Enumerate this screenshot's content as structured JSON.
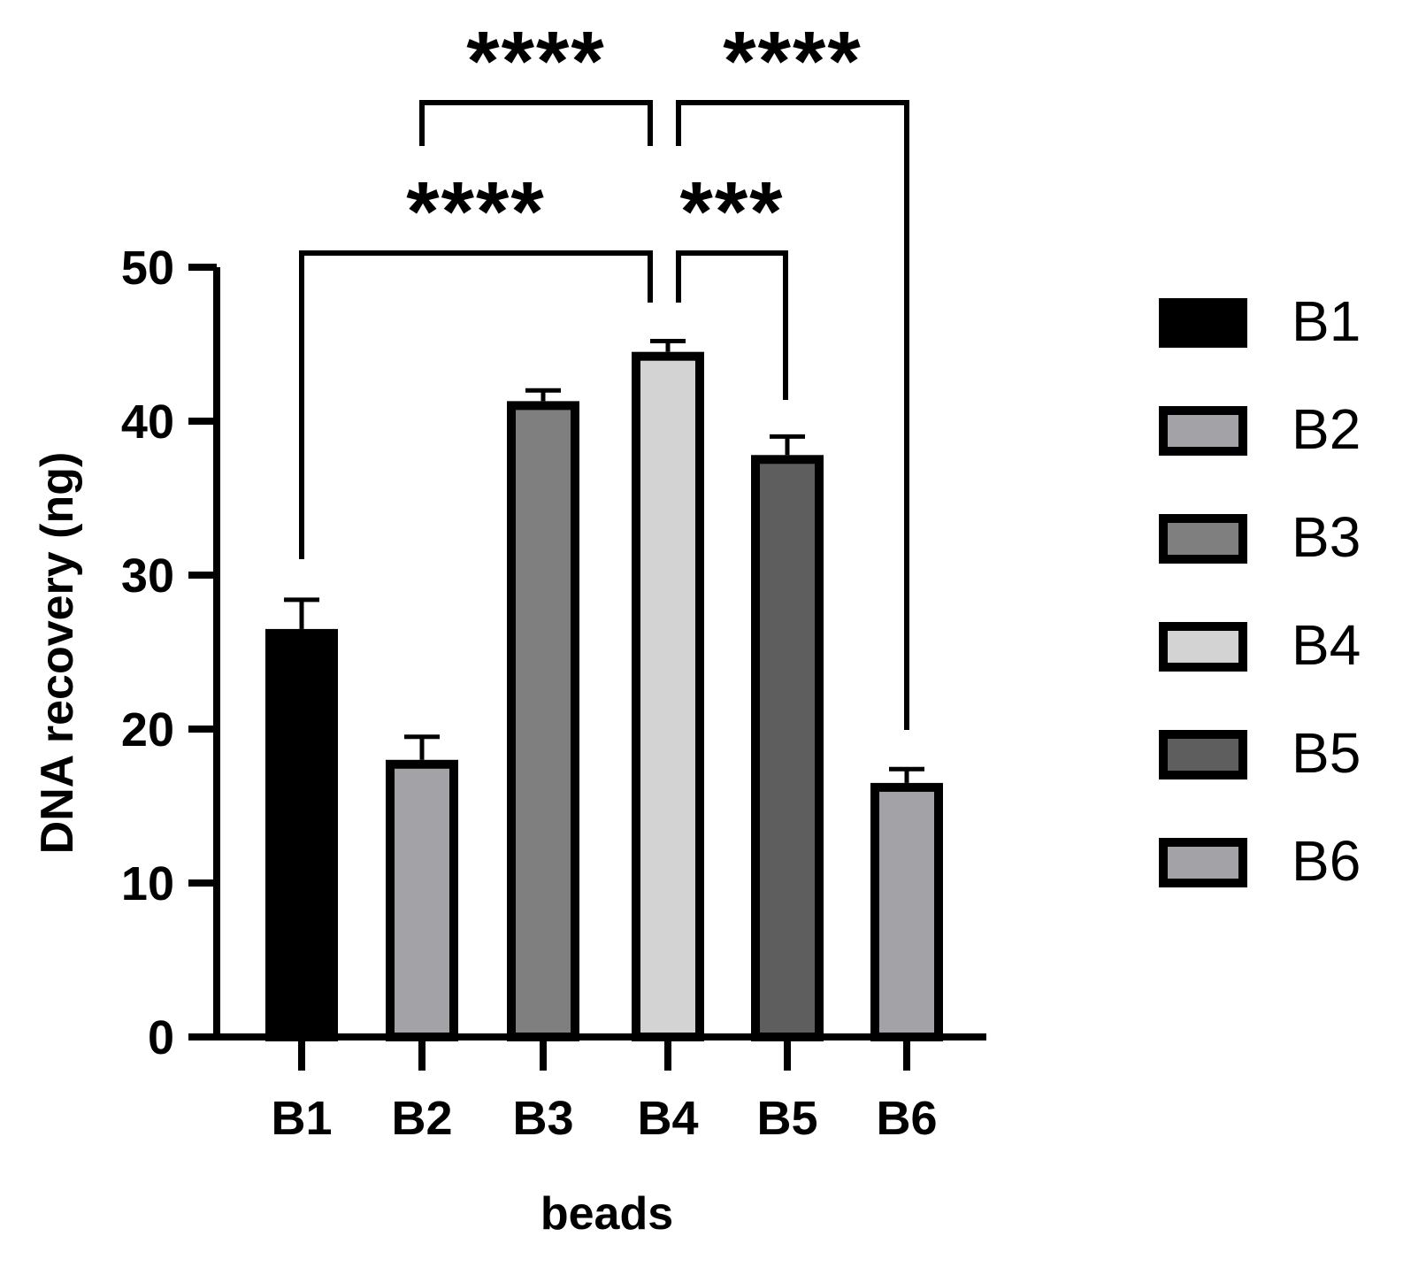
{
  "chart_data": {
    "type": "bar",
    "categories": [
      "B1",
      "B2",
      "B3",
      "B4",
      "B5",
      "B6"
    ],
    "values": [
      26.5,
      18.0,
      41.3,
      44.5,
      37.8,
      16.5
    ],
    "errors": [
      1.9,
      1.5,
      0.7,
      0.7,
      1.2,
      0.9
    ],
    "colors": [
      "#000000",
      "#a3a2a7",
      "#7f7f7f",
      "#d3d3d3",
      "#5e5e5e",
      "#a3a2a7"
    ],
    "xlabel": "beads",
    "ylabel": "DNA recovery (ng)",
    "ylim": [
      0,
      50
    ],
    "yticks": [
      0,
      10,
      20,
      30,
      40,
      50
    ],
    "grid": false,
    "legend": {
      "position": "right",
      "entries": [
        "B1",
        "B2",
        "B3",
        "B4",
        "B5",
        "B6"
      ]
    },
    "significance": [
      {
        "from": "B2",
        "to": "B4",
        "label": "****"
      },
      {
        "from": "B4",
        "to": "B6",
        "label": "****"
      },
      {
        "from": "B1",
        "to": "B4",
        "label": "****"
      },
      {
        "from": "B4",
        "to": "B5",
        "label": "***"
      }
    ]
  }
}
